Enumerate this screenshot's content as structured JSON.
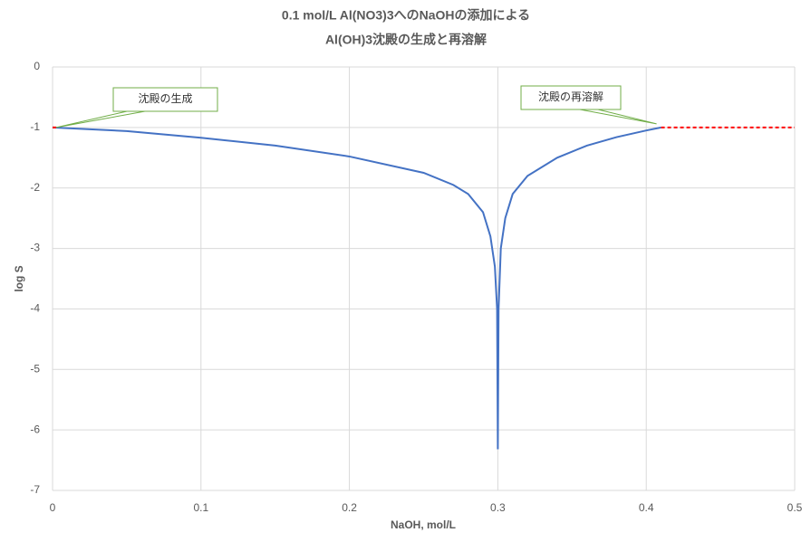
{
  "chart_data": {
    "type": "line",
    "title": [
      "0.1 mol/L Al(NO3)3へのNaOHの添加による",
      "Al(OH)3沈殿の生成と再溶解"
    ],
    "x_label": "NaOH, mol/L",
    "y_label": "log S",
    "series": [
      {
        "color": "#4472c4",
        "dashed": false,
        "x": [
          0,
          0.05,
          0.1,
          0.15,
          0.2,
          0.25,
          0.27,
          0.28,
          0.29,
          0.295,
          0.298,
          0.2995,
          0.3,
          0.3005,
          0.302,
          0.305,
          0.31,
          0.32,
          0.34,
          0.36,
          0.38,
          0.4,
          0.41
        ],
        "values": [
          -1.0,
          -1.06,
          -1.17,
          -1.3,
          -1.48,
          -1.75,
          -1.95,
          -2.1,
          -2.4,
          -2.8,
          -3.3,
          -4.0,
          -6.32,
          -4.0,
          -3.0,
          -2.5,
          -2.1,
          -1.8,
          -1.5,
          -1.3,
          -1.16,
          -1.05,
          -1.0
        ]
      },
      {
        "color": "#ff0000",
        "dashed": true,
        "x": [
          0,
          0.003
        ],
        "values": [
          -1,
          -1
        ]
      },
      {
        "color": "#ff0000",
        "dashed": true,
        "x": [
          0.41,
          0.5
        ],
        "values": [
          -1,
          -1
        ]
      }
    ],
    "annotations": [
      "沈殿の生成",
      "沈殿の再溶解"
    ],
    "xlim": [
      0,
      0.5
    ],
    "ylim": [
      -7,
      0
    ],
    "xticks": [
      0,
      0.1,
      0.2,
      0.3,
      0.4,
      0.5
    ],
    "yticks": [
      0,
      -1,
      -2,
      -3,
      -4,
      -5,
      -6,
      -7
    ],
    "grid": true
  }
}
